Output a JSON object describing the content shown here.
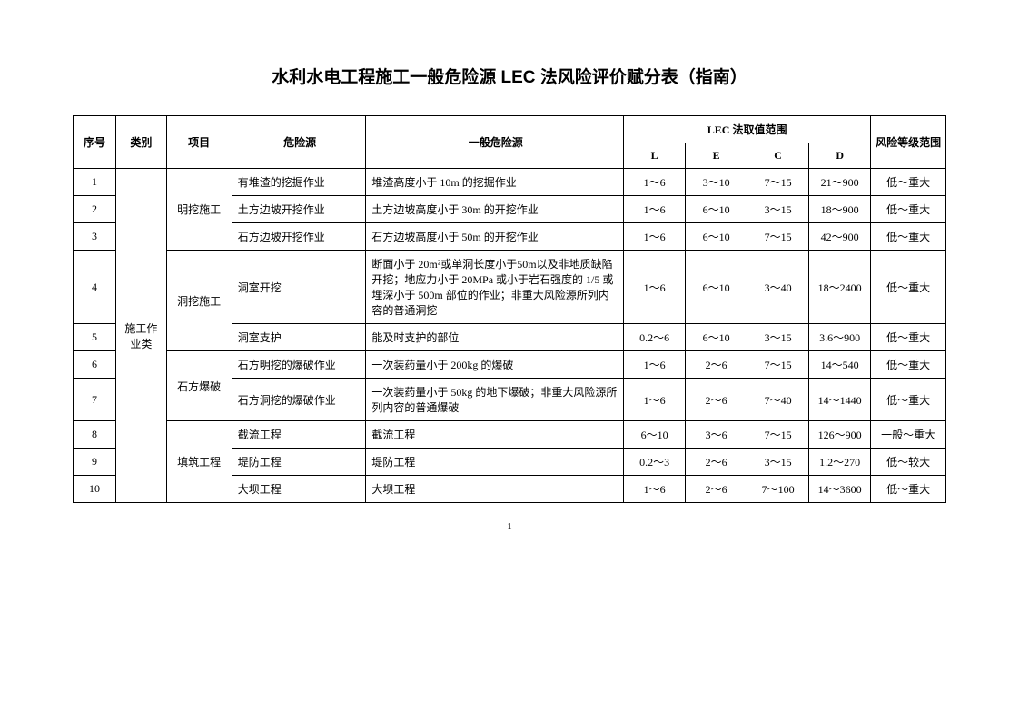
{
  "title": "水利水电工程施工一般危险源 LEC 法风险评价赋分表（指南）",
  "headers": {
    "seq": "序号",
    "category": "类别",
    "project": "项目",
    "hazard": "危险源",
    "general_hazard": "一般危险源",
    "lec_group": "LEC 法取值范围",
    "L": "L",
    "E": "E",
    "C": "C",
    "D": "D",
    "risk": "风险等级范围"
  },
  "category_label": "施工作业类",
  "projects": {
    "p1": "明挖施工",
    "p2": "洞挖施工",
    "p3": "石方爆破",
    "p4": "填筑工程"
  },
  "rows": [
    {
      "seq": "1",
      "hazard": "有堆渣的挖掘作业",
      "general": "堆渣高度小于 10m 的挖掘作业",
      "L": "1～6",
      "E": "3～10",
      "C": "7～15",
      "D": "21～900",
      "risk": "低～重大"
    },
    {
      "seq": "2",
      "hazard": "土方边坡开挖作业",
      "general": "土方边坡高度小于 30m 的开挖作业",
      "L": "1～6",
      "E": "6～10",
      "C": "3～15",
      "D": "18～900",
      "risk": "低～重大"
    },
    {
      "seq": "3",
      "hazard": "石方边坡开挖作业",
      "general": "石方边坡高度小于 50m 的开挖作业",
      "L": "1～6",
      "E": "6～10",
      "C": "7～15",
      "D": "42～900",
      "risk": "低～重大"
    },
    {
      "seq": "4",
      "hazard": "洞室开挖",
      "general": "断面小于 20m²或单洞长度小于50m以及非地质缺陷开挖；地应力小于 20MPa 或小于岩石强度的 1/5 或埋深小于 500m 部位的作业；非重大风险源所列内容的普通洞挖",
      "L": "1～6",
      "E": "6～10",
      "C": "3～40",
      "D": "18～2400",
      "risk": "低～重大"
    },
    {
      "seq": "5",
      "hazard": "洞室支护",
      "general": "能及时支护的部位",
      "L": "0.2～6",
      "E": "6～10",
      "C": "3～15",
      "D": "3.6～900",
      "risk": "低～重大"
    },
    {
      "seq": "6",
      "hazard": "石方明挖的爆破作业",
      "general": "一次装药量小于 200kg 的爆破",
      "L": "1～6",
      "E": "2～6",
      "C": "7～15",
      "D": "14～540",
      "risk": "低～重大"
    },
    {
      "seq": "7",
      "hazard": "石方洞挖的爆破作业",
      "general": "一次装药量小于 50kg 的地下爆破；非重大风险源所列内容的普通爆破",
      "L": "1～6",
      "E": "2～6",
      "C": "7～40",
      "D": "14～1440",
      "risk": "低～重大"
    },
    {
      "seq": "8",
      "hazard": "截流工程",
      "general": "截流工程",
      "L": "6～10",
      "E": "3～6",
      "C": "7～15",
      "D": "126～900",
      "risk": "一般～重大"
    },
    {
      "seq": "9",
      "hazard": "堤防工程",
      "general": "堤防工程",
      "L": "0.2～3",
      "E": "2～6",
      "C": "3～15",
      "D": "1.2～270",
      "risk": "低～较大"
    },
    {
      "seq": "10",
      "hazard": "大坝工程",
      "general": "大坝工程",
      "L": "1～6",
      "E": "2～6",
      "C": "7～100",
      "D": "14～3600",
      "risk": "低～重大"
    }
  ],
  "page_number": "1"
}
